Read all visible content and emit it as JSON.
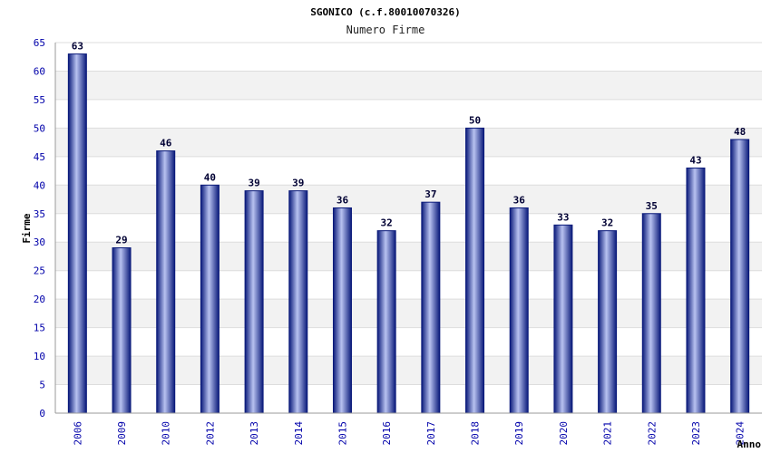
{
  "chart_data": {
    "type": "bar",
    "title": "SGONICO (c.f.80010070326)",
    "subtitle": "Numero Firme",
    "xlabel": "Anno",
    "ylabel": "Firme",
    "categories": [
      "2006",
      "2009",
      "2010",
      "2012",
      "2013",
      "2014",
      "2015",
      "2016",
      "2017",
      "2018",
      "2019",
      "2020",
      "2021",
      "2022",
      "2023",
      "2024"
    ],
    "values": [
      63,
      29,
      46,
      40,
      39,
      39,
      36,
      32,
      37,
      50,
      36,
      33,
      32,
      35,
      43,
      48
    ],
    "ylim": [
      0,
      65
    ],
    "yticks": [
      0,
      5,
      10,
      15,
      20,
      25,
      30,
      35,
      40,
      45,
      50,
      55,
      60,
      65
    ],
    "grid": true,
    "legend": "none",
    "colors": {
      "bar_dark": "#0a1a7a",
      "bar_light": "#b8c2f0",
      "tick_text": "#0000aa",
      "band": "#f2f2f2",
      "grid": "#dddddd"
    }
  }
}
